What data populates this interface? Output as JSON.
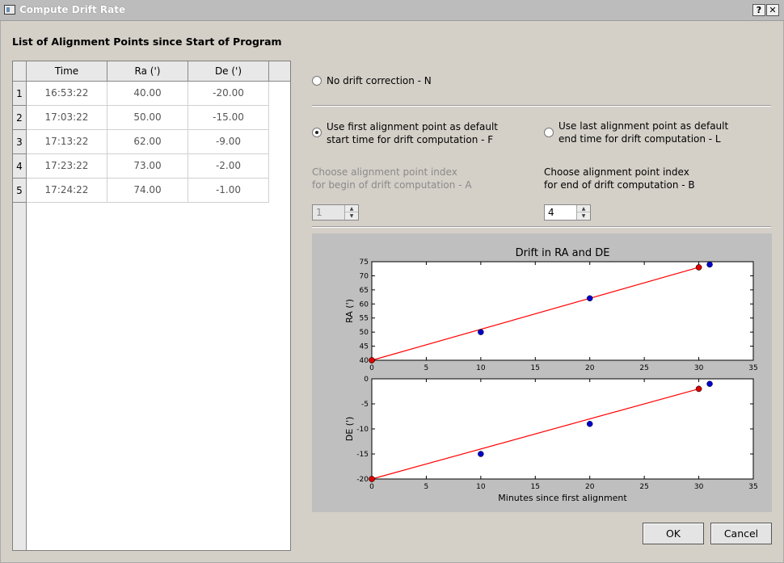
{
  "window": {
    "title": "Compute Drift Rate",
    "help_label": "?",
    "close_label": "✕"
  },
  "heading": "List of Alignment Points since Start of Program",
  "table": {
    "columns": [
      "Time",
      "Ra (')",
      "De (')"
    ],
    "rows": [
      {
        "index": "1",
        "time": "16:53:22",
        "ra": "40.00",
        "de": "-20.00"
      },
      {
        "index": "2",
        "time": "17:03:22",
        "ra": "50.00",
        "de": "-15.00"
      },
      {
        "index": "3",
        "time": "17:13:22",
        "ra": "62.00",
        "de": "-9.00"
      },
      {
        "index": "4",
        "time": "17:23:22",
        "ra": "73.00",
        "de": "-2.00"
      },
      {
        "index": "5",
        "time": "17:24:22",
        "ra": "74.00",
        "de": "-1.00"
      }
    ]
  },
  "options": {
    "no_drift": {
      "label": "No drift correction - N",
      "checked": false
    },
    "use_first": {
      "label": "Use first alignment point as default\nstart time for drift computation - F",
      "checked": true
    },
    "use_last": {
      "label": "Use last alignment point as default\nend time for drift computation - L",
      "checked": false
    },
    "begin_label": "Choose alignment point index\nfor begin of drift computation - A",
    "end_label": "Choose alignment point index\nfor end of drift computation - B",
    "begin_value": "1",
    "end_value": "4"
  },
  "chart_data": {
    "type": "scatter",
    "title": "Drift in RA and DE",
    "xlabel": "Minutes since first alignment",
    "xlim": [
      0,
      35
    ],
    "xticks": [
      0,
      5,
      10,
      15,
      20,
      25,
      30,
      35
    ],
    "colors": {
      "points": "#0000cc",
      "selected": "#dd0000",
      "fit": "#ff0000"
    },
    "subplots": [
      {
        "ylabel": "RA (')",
        "ylim": [
          40,
          75
        ],
        "yticks": [
          40,
          45,
          50,
          55,
          60,
          65,
          70,
          75
        ],
        "points": [
          [
            0,
            40
          ],
          [
            10,
            50
          ],
          [
            20,
            62
          ],
          [
            30,
            73
          ],
          [
            31,
            74
          ]
        ],
        "selected": [
          [
            0,
            40
          ],
          [
            30,
            73
          ]
        ],
        "fit_line": [
          [
            0,
            40
          ],
          [
            30,
            73
          ]
        ]
      },
      {
        "ylabel": "DE (')",
        "ylim": [
          -20,
          0
        ],
        "yticks": [
          -20,
          -15,
          -10,
          -5,
          0
        ],
        "points": [
          [
            0,
            -20
          ],
          [
            10,
            -15
          ],
          [
            20,
            -9
          ],
          [
            30,
            -2
          ],
          [
            31,
            -1
          ]
        ],
        "selected": [
          [
            0,
            -20
          ],
          [
            30,
            -2
          ]
        ],
        "fit_line": [
          [
            0,
            -20
          ],
          [
            30,
            -2
          ]
        ]
      }
    ]
  },
  "buttons": {
    "ok": "OK",
    "cancel": "Cancel"
  }
}
